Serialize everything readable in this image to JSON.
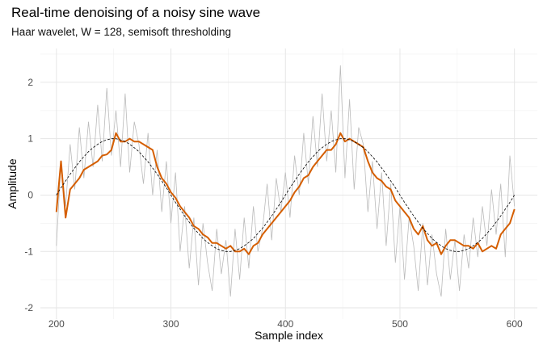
{
  "chart_data": {
    "type": "line",
    "title": "Real-time denoising of a noisy sine wave",
    "subtitle": "Haar wavelet, W = 128, semisoft thresholding",
    "xlabel": "Sample index",
    "ylabel": "Amplitude",
    "xlim": [
      186,
      620
    ],
    "ylim": [
      -2.2,
      2.6
    ],
    "xticks": [
      200,
      300,
      400,
      500,
      600
    ],
    "yticks": [
      -2,
      -1,
      0,
      1,
      2
    ],
    "grid": true,
    "legend": "none",
    "x_start": 200,
    "x_step": 4,
    "series": [
      {
        "role": "noisy",
        "color": "#bbbbbb",
        "values": [
          -0.9,
          0.6,
          -0.2,
          0.9,
          0.1,
          1.2,
          0.3,
          1.3,
          0.5,
          1.6,
          0.6,
          1.9,
          0.7,
          1.5,
          0.5,
          1.8,
          0.4,
          1.3,
          0.9,
          0.2,
          1.1,
          0.0,
          0.8,
          -0.3,
          0.6,
          -0.5,
          0.4,
          -1.0,
          -0.2,
          -1.3,
          -0.4,
          -1.6,
          -0.5,
          -1.2,
          -1.7,
          -0.6,
          -1.4,
          -0.8,
          -1.8,
          -0.6,
          -1.5,
          -0.4,
          -1.3,
          -0.2,
          -1.0,
          -0.6,
          0.2,
          -0.8,
          0.3,
          -0.3,
          0.4,
          -0.4,
          0.7,
          0.0,
          1.1,
          0.2,
          1.4,
          0.5,
          1.8,
          0.6,
          1.5,
          0.4,
          2.3,
          0.3,
          1.7,
          0.1,
          1.2,
          0.9,
          -0.3,
          0.6,
          -0.6,
          0.4,
          -0.9,
          0.2,
          -1.2,
          -0.2,
          -1.5,
          -0.4,
          -0.9,
          -1.7,
          -0.5,
          -1.6,
          -0.7,
          -1.4,
          -1.8,
          -0.6,
          -1.5,
          -0.8,
          -1.7,
          -0.7,
          -1.3,
          -0.4,
          -1.1,
          -0.2,
          -0.9,
          0.1,
          -0.7,
          0.2,
          -1.1,
          0.7,
          -0.2
        ]
      },
      {
        "role": "denoised",
        "color": "#D55E00",
        "values": [
          -0.3,
          0.6,
          -0.4,
          0.1,
          0.2,
          0.3,
          0.45,
          0.5,
          0.55,
          0.6,
          0.7,
          0.72,
          0.8,
          1.1,
          0.95,
          0.95,
          1.0,
          0.95,
          0.95,
          0.9,
          0.85,
          0.8,
          0.5,
          0.3,
          0.2,
          0.05,
          -0.05,
          -0.2,
          -0.3,
          -0.4,
          -0.55,
          -0.6,
          -0.7,
          -0.75,
          -0.85,
          -0.85,
          -0.9,
          -0.95,
          -0.9,
          -1.0,
          -1.0,
          -0.95,
          -1.05,
          -0.9,
          -0.85,
          -0.7,
          -0.6,
          -0.5,
          -0.4,
          -0.3,
          -0.2,
          -0.1,
          0.05,
          0.15,
          0.3,
          0.35,
          0.5,
          0.6,
          0.7,
          0.8,
          0.8,
          0.9,
          1.1,
          0.95,
          1.0,
          0.95,
          0.9,
          0.85,
          0.6,
          0.4,
          0.3,
          0.25,
          0.15,
          0.1,
          -0.1,
          -0.2,
          -0.3,
          -0.4,
          -0.6,
          -0.7,
          -0.55,
          -0.8,
          -0.9,
          -0.85,
          -1.05,
          -0.9,
          -0.8,
          -0.8,
          -0.85,
          -0.9,
          -0.9,
          -0.95,
          -0.85,
          -1.0,
          -0.95,
          -0.9,
          -0.95,
          -0.7,
          -0.6,
          -0.5,
          -0.25
        ]
      },
      {
        "role": "true signal",
        "color": "#000000",
        "dashed": true,
        "values": [
          0,
          0.13,
          0.25,
          0.37,
          0.48,
          0.59,
          0.68,
          0.77,
          0.84,
          0.9,
          0.95,
          0.98,
          1,
          1,
          0.98,
          0.95,
          0.9,
          0.84,
          0.77,
          0.68,
          0.59,
          0.48,
          0.37,
          0.25,
          0.13,
          0,
          -0.13,
          -0.25,
          -0.37,
          -0.48,
          -0.59,
          -0.68,
          -0.77,
          -0.84,
          -0.9,
          -0.95,
          -0.98,
          -1,
          -1,
          -0.98,
          -0.95,
          -0.9,
          -0.84,
          -0.77,
          -0.68,
          -0.59,
          -0.48,
          -0.37,
          -0.25,
          -0.13,
          0,
          0.13,
          0.25,
          0.37,
          0.48,
          0.59,
          0.68,
          0.77,
          0.84,
          0.9,
          0.95,
          0.98,
          1,
          1,
          0.98,
          0.95,
          0.9,
          0.84,
          0.77,
          0.68,
          0.59,
          0.48,
          0.37,
          0.25,
          0.13,
          0,
          -0.13,
          -0.25,
          -0.37,
          -0.48,
          -0.59,
          -0.68,
          -0.77,
          -0.84,
          -0.9,
          -0.95,
          -0.98,
          -1,
          -1,
          -0.98,
          -0.95,
          -0.9,
          -0.84,
          -0.77,
          -0.68,
          -0.59,
          -0.48,
          -0.37,
          -0.25,
          -0.13,
          0
        ]
      }
    ]
  }
}
